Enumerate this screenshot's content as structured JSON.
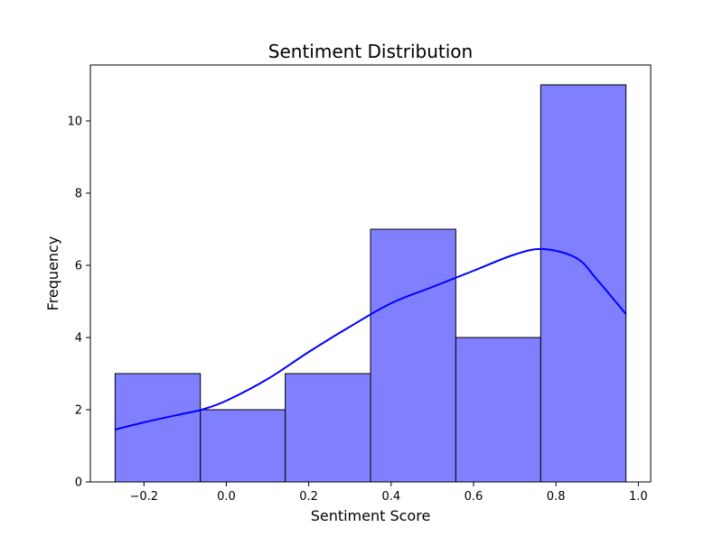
{
  "chart_data": {
    "type": "bar",
    "subtype": "histogram-with-kde",
    "title": "Sentiment Distribution",
    "xlabel": "Sentiment Score",
    "ylabel": "Frequency",
    "xlim": [
      -0.33,
      1.03
    ],
    "ylim": [
      0,
      11.55
    ],
    "x_ticks": [
      -0.2,
      0.0,
      0.2,
      0.4,
      0.6,
      0.8,
      1.0
    ],
    "x_tick_labels": [
      "−0.2",
      "0.0",
      "0.2",
      "0.4",
      "0.6",
      "0.8",
      "1.0"
    ],
    "y_ticks": [
      0,
      2,
      4,
      6,
      8,
      10
    ],
    "y_tick_labels": [
      "0",
      "2",
      "4",
      "6",
      "8",
      "10"
    ],
    "bins": [
      {
        "x0": -0.27,
        "x1": -0.063,
        "count": 3
      },
      {
        "x0": -0.063,
        "x1": 0.143,
        "count": 2
      },
      {
        "x0": 0.143,
        "x1": 0.35,
        "count": 3
      },
      {
        "x0": 0.35,
        "x1": 0.557,
        "count": 7
      },
      {
        "x0": 0.557,
        "x1": 0.763,
        "count": 4
      },
      {
        "x0": 0.763,
        "x1": 0.97,
        "count": 11
      }
    ],
    "kde": {
      "x": [
        -0.27,
        -0.2,
        -0.1,
        -0.06,
        0.0,
        0.1,
        0.2,
        0.3,
        0.4,
        0.5,
        0.6,
        0.7,
        0.77,
        0.85,
        0.9,
        0.97
      ],
      "y": [
        1.45,
        1.65,
        1.9,
        2.0,
        2.25,
        2.85,
        3.6,
        4.3,
        4.95,
        5.4,
        5.85,
        6.3,
        6.45,
        6.2,
        5.6,
        4.65
      ]
    },
    "colors": {
      "bar_fill": "#8080ff",
      "bar_edge": "#000000",
      "kde_line": "#0000ff"
    },
    "grid": false,
    "legend": "none"
  }
}
